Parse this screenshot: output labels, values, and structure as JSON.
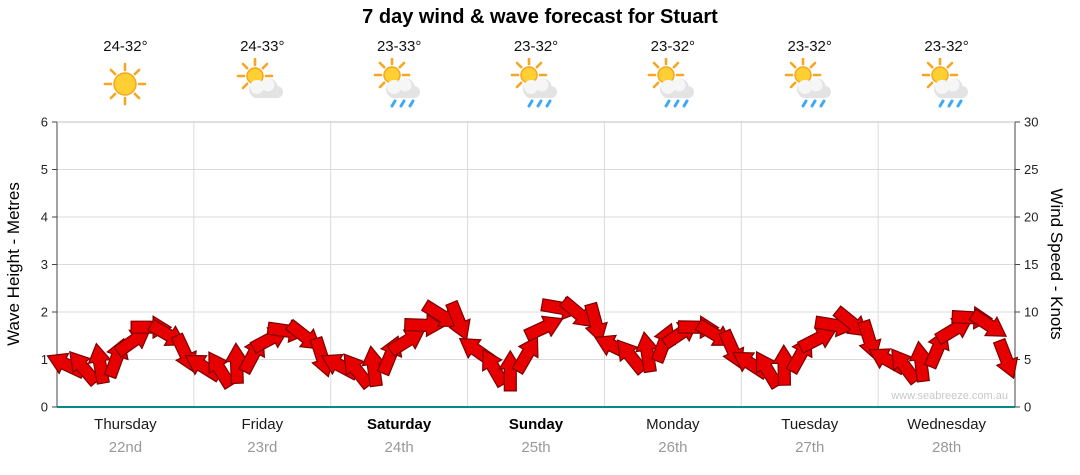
{
  "chart_data": {
    "type": "line",
    "subtype": "wind-barb-band",
    "title": "7 day wind & wave forecast for Stuart",
    "ylabel_left": "Wave Height - Metres",
    "ylabel_right": "Wind Speed - Knots",
    "ylim_left": [
      0,
      6
    ],
    "ylim_right": [
      0,
      30
    ],
    "yticks_left": [
      0,
      1,
      2,
      3,
      4,
      5,
      6
    ],
    "yticks_right": [
      0,
      5,
      10,
      15,
      20,
      25,
      30
    ],
    "watermark": "www.seabreeze.com.au",
    "days": [
      {
        "label": "Thursday",
        "date": "22nd",
        "temp": "24-32°",
        "icon": "sunny",
        "bold": false
      },
      {
        "label": "Friday",
        "date": "23rd",
        "temp": "24-33°",
        "icon": "sun-cloud",
        "bold": false
      },
      {
        "label": "Saturday",
        "date": "24th",
        "temp": "23-33°",
        "icon": "sun-cloud-rain",
        "bold": true
      },
      {
        "label": "Sunday",
        "date": "25th",
        "temp": "23-32°",
        "icon": "sun-cloud-rain",
        "bold": true
      },
      {
        "label": "Monday",
        "date": "26th",
        "temp": "23-32°",
        "icon": "sun-cloud-rain",
        "bold": false
      },
      {
        "label": "Tuesday",
        "date": "27th",
        "temp": "23-32°",
        "icon": "sun-cloud-rain",
        "bold": false
      },
      {
        "label": "Wednesday",
        "date": "28th",
        "temp": "23-32°",
        "icon": "sun-cloud-rain",
        "bold": false
      }
    ],
    "wind": {
      "points_per_day": 8,
      "knots": [
        4.5,
        4.2,
        4.6,
        5.2,
        7.0,
        8.4,
        7.6,
        5.6,
        4.3,
        4.0,
        4.6,
        5.6,
        7.2,
        8.0,
        7.4,
        5.2,
        4.4,
        3.9,
        4.3,
        5.5,
        7.0,
        8.6,
        9.6,
        9.0,
        6.0,
        4.2,
        3.8,
        5.6,
        8.4,
        10.4,
        9.8,
        8.8,
        6.4,
        5.4,
        5.8,
        6.8,
        7.8,
        8.4,
        7.6,
        6.0,
        4.6,
        4.0,
        4.4,
        5.6,
        7.2,
        8.6,
        8.8,
        7.0,
        5.0,
        4.4,
        4.8,
        6.2,
        8.2,
        9.4,
        8.6,
        5.0
      ],
      "dir_deg": [
        205,
        230,
        260,
        290,
        325,
        0,
        30,
        65,
        212,
        238,
        268,
        298,
        332,
        8,
        38,
        72,
        208,
        232,
        262,
        292,
        328,
        2,
        32,
        68,
        215,
        240,
        270,
        300,
        335,
        10,
        40,
        75,
        206,
        231,
        261,
        291,
        326,
        1,
        31,
        66,
        213,
        239,
        269,
        299,
        333,
        9,
        39,
        73,
        209,
        233,
        263,
        293,
        329,
        3,
        33,
        69
      ]
    },
    "colors": {
      "arrow": "#E60000",
      "arrow_edge": "#7E0000",
      "grid": "#DBDBDB",
      "frame": "#BFBFBF",
      "axis": "#444444",
      "baseline": "#008B8B",
      "tick_text": "#222222",
      "date_text": "#999999",
      "watermark": "#C8C8C8",
      "sun": "#FFCF33",
      "sun_ray": "#F5A623",
      "cloud": "#E3E3E3",
      "cloud_light": "#F6F6F6",
      "rain": "#3FA9F5"
    }
  }
}
